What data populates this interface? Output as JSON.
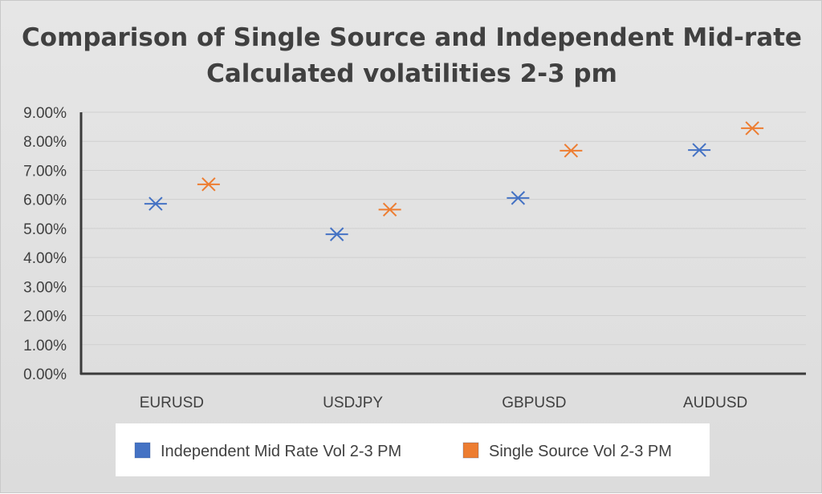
{
  "chart_data": {
    "type": "scatter",
    "title_lines": [
      "Comparison of Single Source and Independent Mid-rate",
      "Calculated volatilities 2-3 pm"
    ],
    "categories": [
      "EURUSD",
      "USDJPY",
      "GBPUSD",
      "AUDUSD"
    ],
    "series": [
      {
        "name": "Independent Mid Rate Vol 2-3 PM",
        "color": "#4472C4",
        "values": [
          5.85,
          4.8,
          6.05,
          7.7
        ]
      },
      {
        "name": "Single Source Vol 2-3 PM",
        "color": "#ED7D31",
        "values": [
          6.52,
          5.65,
          7.68,
          8.45
        ]
      }
    ],
    "ylim": [
      0,
      9
    ],
    "ytick_values": [
      0,
      1,
      2,
      3,
      4,
      5,
      6,
      7,
      8,
      9
    ],
    "ytick_labels": [
      "0.00%",
      "1.00%",
      "2.00%",
      "3.00%",
      "4.00%",
      "5.00%",
      "6.00%",
      "7.00%",
      "8.00%",
      "9.00%"
    ],
    "grid": true,
    "legend_position": "bottom",
    "xlabel": "",
    "ylabel": ""
  }
}
